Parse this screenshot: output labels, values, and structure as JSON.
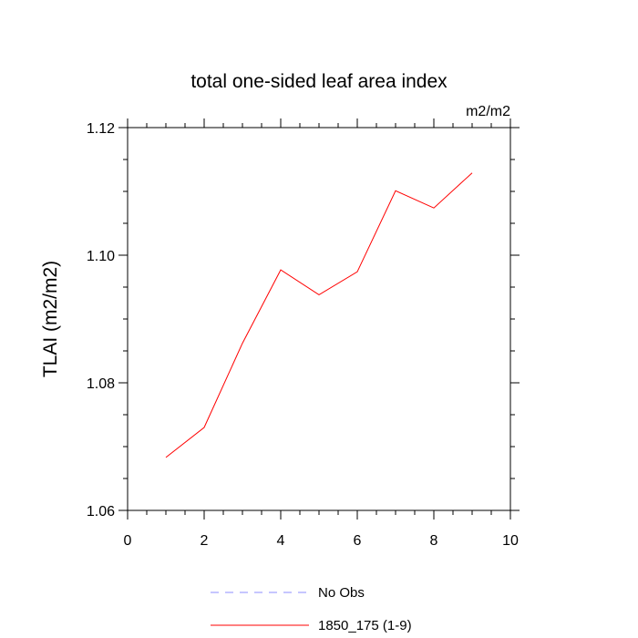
{
  "chart_data": {
    "type": "line",
    "title": "total one-sided leaf area index",
    "units_label": "m2/m2",
    "xlabel": "",
    "ylabel": "TLAI  (m2/m2)",
    "xlim": [
      0,
      10
    ],
    "ylim": [
      1.06,
      1.12
    ],
    "x_ticks": [
      0,
      2,
      4,
      6,
      8,
      10
    ],
    "x_tick_labels": [
      "0",
      "2",
      "4",
      "6",
      "8",
      "10"
    ],
    "y_ticks": [
      1.06,
      1.08,
      1.1,
      1.12
    ],
    "y_tick_labels": [
      "1.06",
      "1.08",
      "1.10",
      "1.12"
    ],
    "grid": false,
    "legend_position": "bottom",
    "series": [
      {
        "name": "1850_175 (1-9)",
        "color": "#ff0000",
        "style": "solid",
        "x": [
          1,
          2,
          3,
          4,
          5,
          6,
          7,
          8,
          9
        ],
        "values": [
          1.0683,
          1.073,
          1.0862,
          1.0977,
          1.0938,
          1.0974,
          1.1101,
          1.1074,
          1.1129
        ]
      }
    ],
    "legend": [
      {
        "label": "No Obs",
        "color": "#8c8cff",
        "style": "dashed"
      },
      {
        "label": "1850_175 (1-9)",
        "color": "#ff0000",
        "style": "solid"
      }
    ]
  }
}
